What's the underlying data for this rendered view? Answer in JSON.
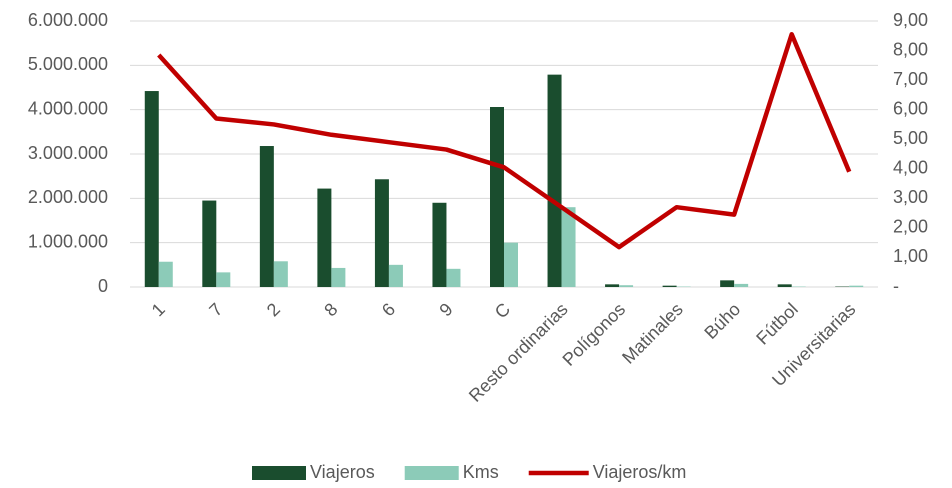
{
  "chart_data": {
    "type": "bar_line",
    "categories": [
      "1",
      "7",
      "2",
      "8",
      "6",
      "9",
      "C",
      "Resto ordinarias",
      "Polígonos",
      "Matinales",
      "Búho",
      "Fútbol",
      "Universitarias"
    ],
    "series": [
      {
        "name": "Viajeros",
        "color": "#1a4d2e",
        "type": "bar",
        "values": [
          4420000,
          1950000,
          3180000,
          2220000,
          2430000,
          1900000,
          4060000,
          4790000,
          60000,
          30000,
          150000,
          60000,
          10000
        ]
      },
      {
        "name": "Kms",
        "color": "#8ccbb8",
        "type": "bar",
        "values": [
          570000,
          330000,
          580000,
          430000,
          500000,
          410000,
          1000000,
          1800000,
          40000,
          10000,
          70000,
          10000,
          30000
        ]
      },
      {
        "name": "Viajeros/km",
        "color": "#c00000",
        "type": "line",
        "axis": "y2",
        "values": [
          7.85,
          5.7,
          5.5,
          5.15,
          4.9,
          4.65,
          4.05,
          2.7,
          1.35,
          2.7,
          2.45,
          8.55,
          3.9
        ]
      }
    ],
    "ylim": [
      0,
      6000000
    ],
    "yticks": [
      {
        "value": 0,
        "label": "0"
      },
      {
        "value": 1000000,
        "label": "1.000.000"
      },
      {
        "value": 2000000,
        "label": "2.000.000"
      },
      {
        "value": 3000000,
        "label": "3.000.000"
      },
      {
        "value": 4000000,
        "label": "4.000.000"
      },
      {
        "value": 5000000,
        "label": "5.000.000"
      },
      {
        "value": 6000000,
        "label": "6.000.000"
      }
    ],
    "y2lim": [
      0,
      9
    ],
    "y2ticks": [
      {
        "value": 0,
        "label": "-"
      },
      {
        "value": 1,
        "label": "1,00"
      },
      {
        "value": 2,
        "label": "2,00"
      },
      {
        "value": 3,
        "label": "3,00"
      },
      {
        "value": 4,
        "label": "4,00"
      },
      {
        "value": 5,
        "label": "5,00"
      },
      {
        "value": 6,
        "label": "6,00"
      },
      {
        "value": 7,
        "label": "7,00"
      },
      {
        "value": 8,
        "label": "8,00"
      },
      {
        "value": 9,
        "label": "9,00"
      }
    ],
    "grid": true,
    "legend": "bottom"
  }
}
